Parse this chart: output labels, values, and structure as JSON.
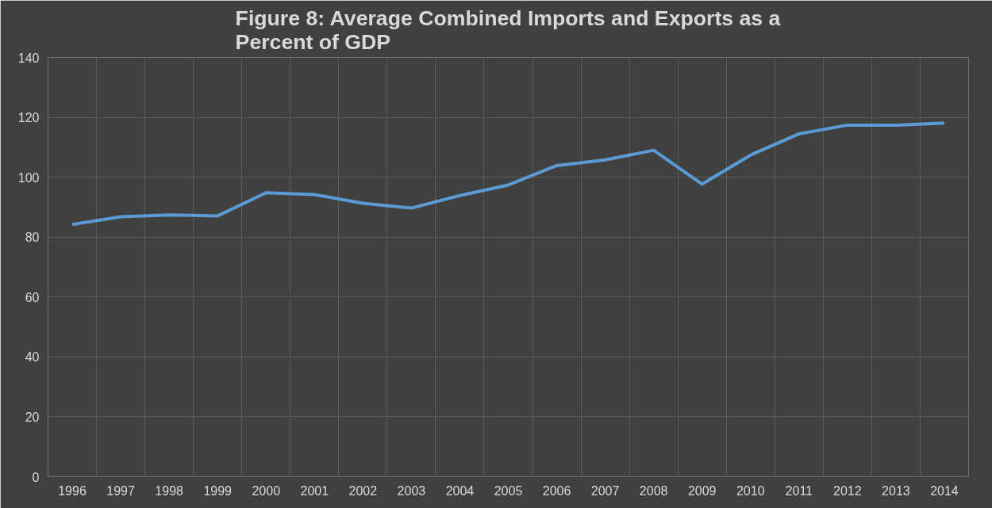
{
  "chart_data": {
    "type": "line",
    "title": "Figure 8: Average Combined Imports and Exports as a Percent of GDP",
    "categories": [
      "1996",
      "1997",
      "1998",
      "1999",
      "2000",
      "2001",
      "2002",
      "2003",
      "2004",
      "2005",
      "2006",
      "2007",
      "2008",
      "2009",
      "2010",
      "2011",
      "2012",
      "2013",
      "2014"
    ],
    "series": [
      {
        "color": "#5b9bd5",
        "values": [
          84.2,
          86.8,
          87.4,
          87.1,
          94.8,
          94.2,
          91.3,
          89.7,
          93.9,
          97.4,
          103.9,
          105.8,
          109.0,
          97.7,
          107.4,
          114.5,
          117.4,
          117.4,
          118.1
        ]
      }
    ],
    "ylim": [
      0,
      140
    ],
    "yticks": [
      0,
      20,
      40,
      60,
      80,
      100,
      120,
      140
    ],
    "grid": true,
    "marker": "none",
    "line_style": "solid"
  }
}
